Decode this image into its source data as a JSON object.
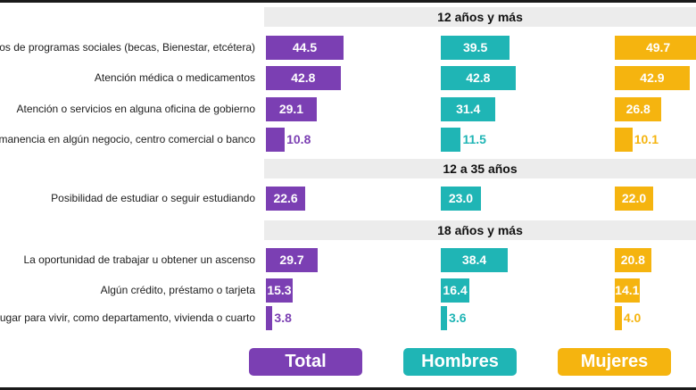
{
  "colors": {
    "total": "#7b3fb3",
    "hombres": "#1fb5b5",
    "mujeres": "#f5b40f"
  },
  "chart_data": {
    "type": "bar",
    "orientation": "horizontal",
    "scale_max": 50,
    "sections": [
      {
        "title": "12 años y más",
        "rows": [
          {
            "label": "Apoyos de programas sociales (becas, Bienestar, etcétera)",
            "display_label": "oyos de programas sociales (becas, Bienestar, etcétera)",
            "total": 44.5,
            "hombres": 39.5,
            "mujeres": 49.7
          },
          {
            "label": "Atención médica o medicamentos",
            "display_label": "Atención médica o medicamentos",
            "total": 42.8,
            "hombres": 42.8,
            "mujeres": 42.9
          },
          {
            "label": "Atención o servicios en alguna oficina de gobierno",
            "display_label": "Atención o servicios en alguna oficina de gobierno",
            "total": 29.1,
            "hombres": 31.4,
            "mujeres": 26.8
          },
          {
            "label": "Permanencia en algún negocio, centro comercial o banco",
            "display_label": "ermanencia en algún negocio, centro comercial o banco",
            "total": 10.8,
            "hombres": 11.5,
            "mujeres": 10.1
          }
        ]
      },
      {
        "title": "12 a 35 años",
        "rows": [
          {
            "label": "Posibilidad de estudiar o seguir estudiando",
            "display_label": "Posibilidad de estudiar o seguir estudiando",
            "total": 22.6,
            "hombres": 23.0,
            "mujeres": 22.0
          }
        ]
      },
      {
        "title": "18 años y más",
        "rows": [
          {
            "label": "La oportunidad de trabajar u obtener un ascenso",
            "display_label": "La oportunidad de trabajar u obtener un ascenso",
            "total": 29.7,
            "hombres": 38.4,
            "mujeres": 20.8
          },
          {
            "label": "Algún crédito, préstamo o tarjeta",
            "display_label": "Algún crédito, préstamo o tarjeta",
            "total": 15.3,
            "hombres": 16.4,
            "mujeres": 14.1
          },
          {
            "label": "Un lugar para vivir, como departamento, vivienda o cuarto",
            "display_label": "n lugar para vivir, como departamento, vivienda o cuarto",
            "total": 3.8,
            "hombres": 3.6,
            "mujeres": 4.0
          }
        ]
      }
    ],
    "legend": [
      {
        "key": "total",
        "label": "Total"
      },
      {
        "key": "hombres",
        "label": "Hombres"
      },
      {
        "key": "mujeres",
        "label": "Mujeres"
      }
    ]
  }
}
